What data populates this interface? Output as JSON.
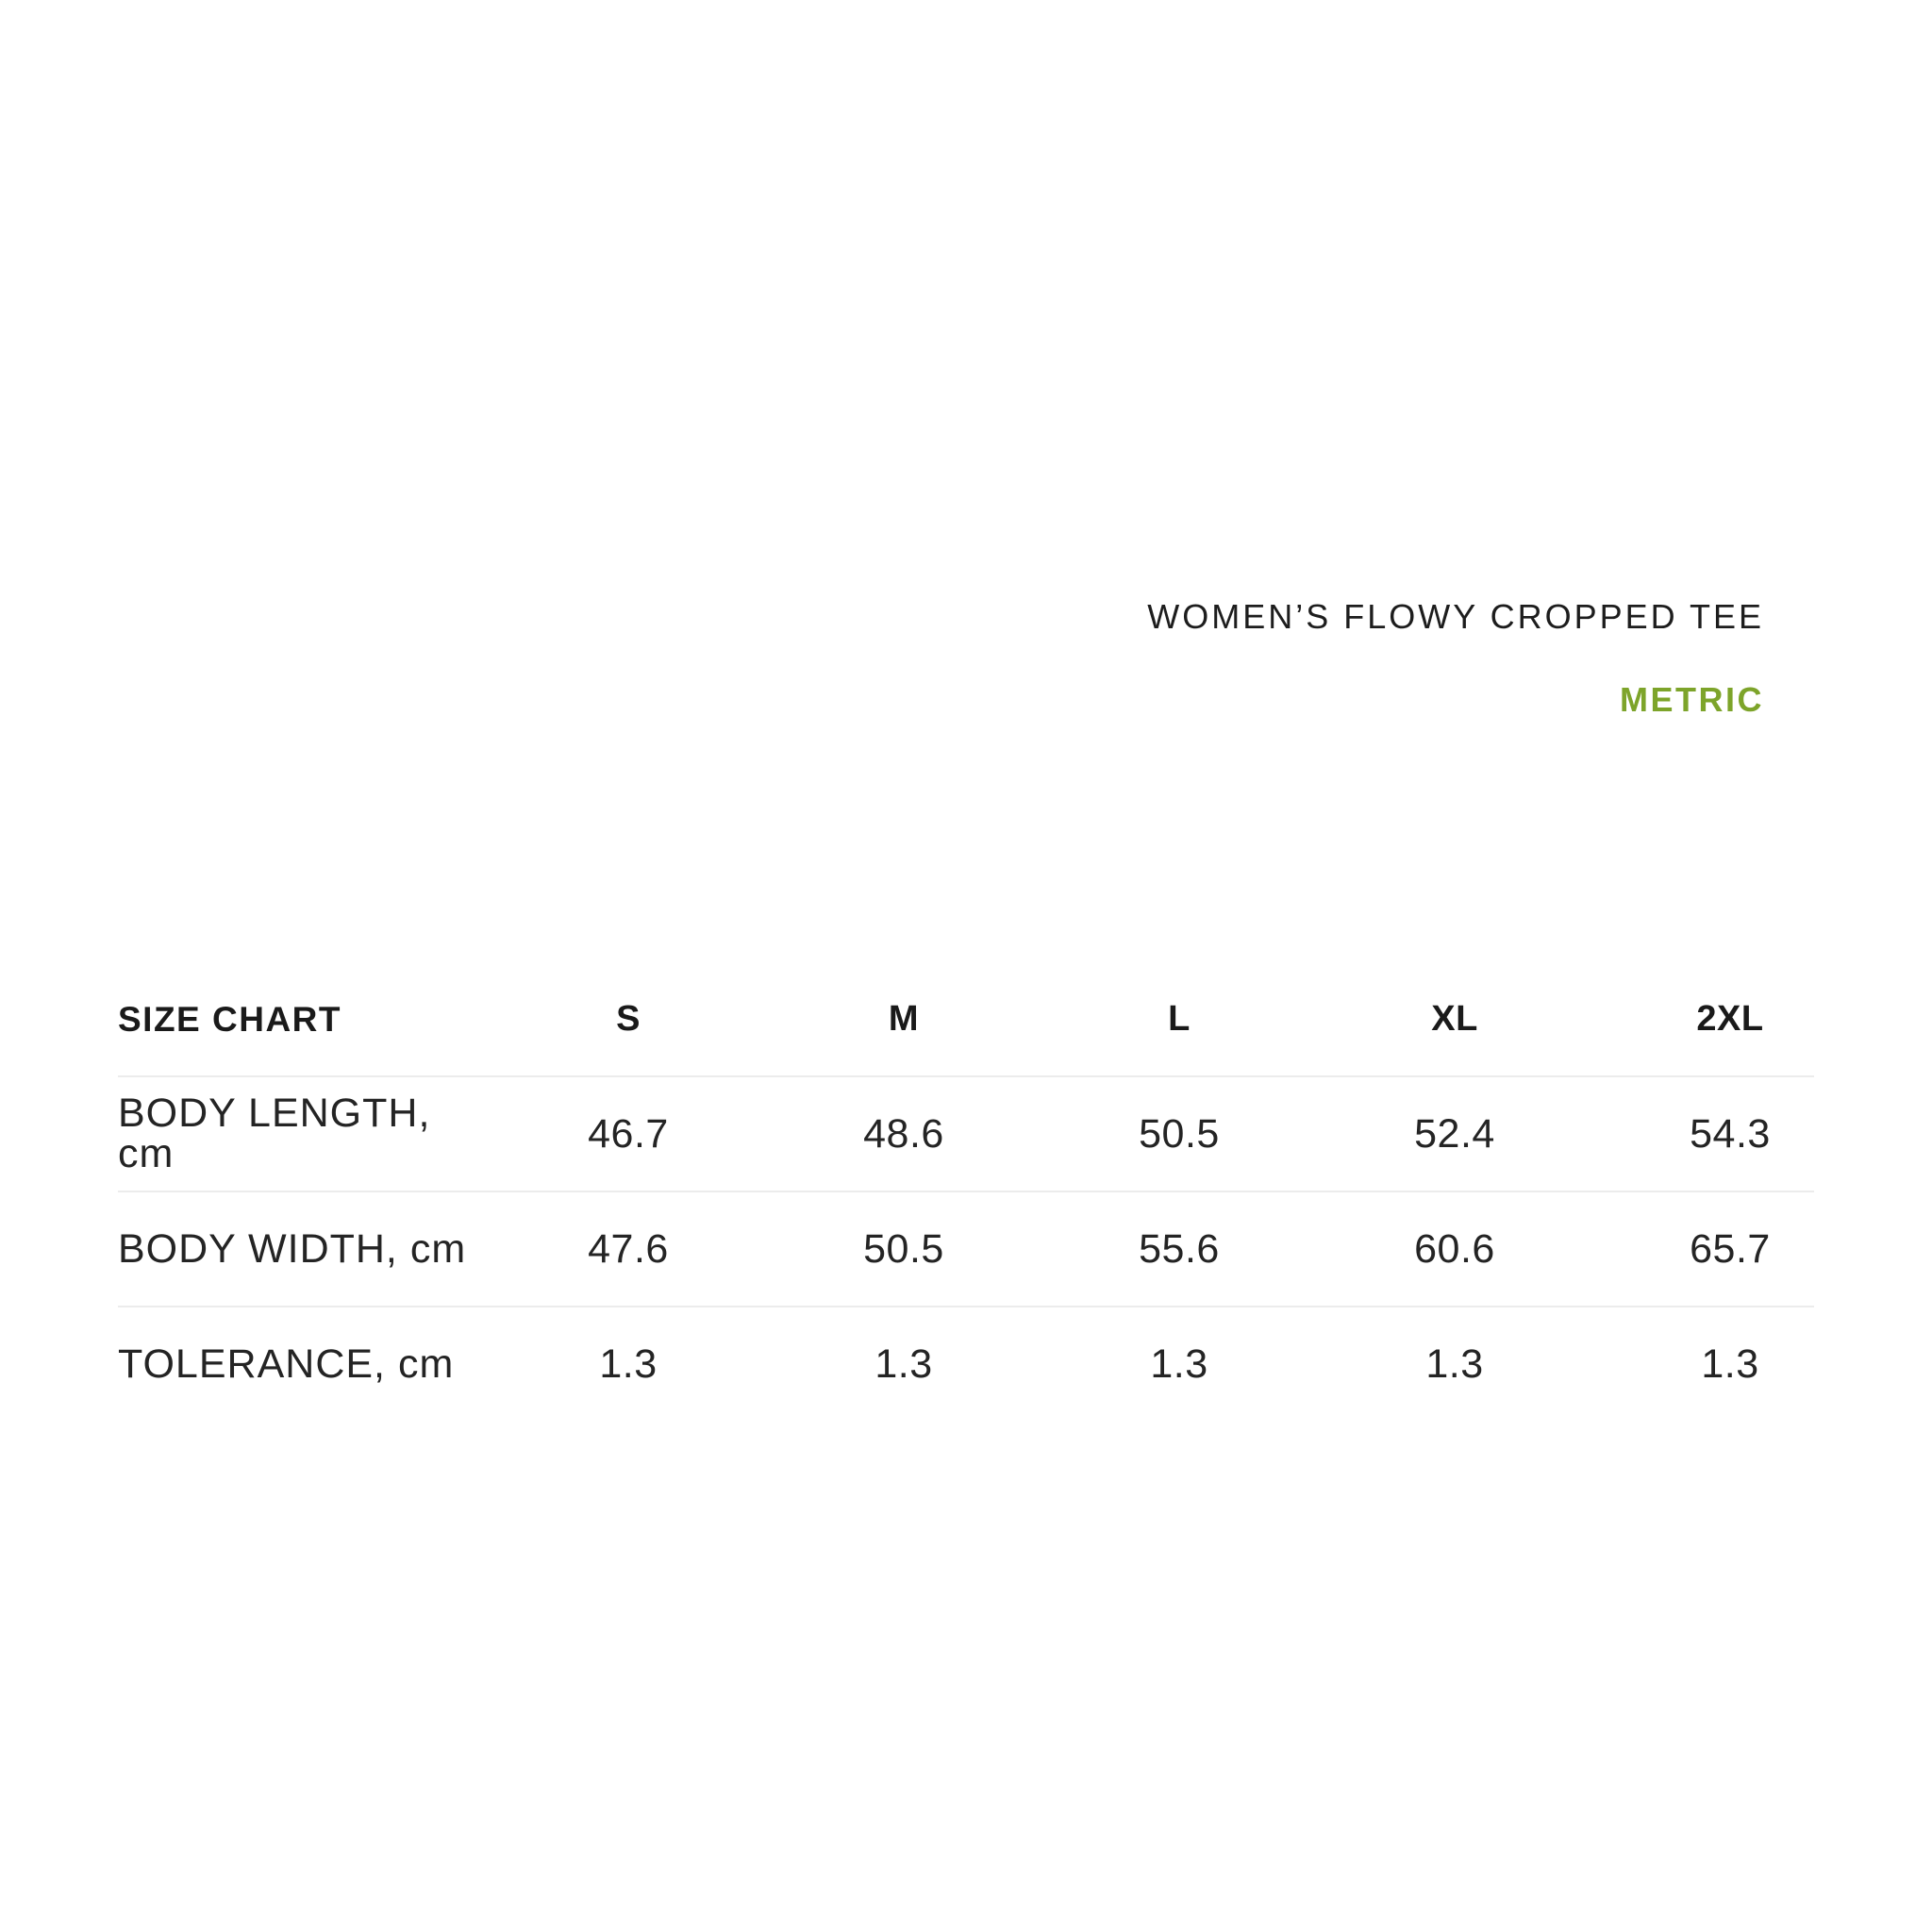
{
  "header": {
    "product_title": "WOMEN’S FLOWY CROPPED TEE",
    "unit_toggle_label": "METRIC"
  },
  "size_chart": {
    "title": "SIZE CHART",
    "columns": [
      "S",
      "M",
      "L",
      "XL",
      "2XL"
    ],
    "rows": [
      {
        "label": "BODY LENGTH, cm",
        "values": [
          "46.7",
          "48.6",
          "50.5",
          "52.4",
          "54.3"
        ]
      },
      {
        "label": "BODY WIDTH, cm",
        "values": [
          "47.6",
          "50.5",
          "55.6",
          "60.6",
          "65.7"
        ]
      },
      {
        "label": "TOLERANCE, cm",
        "values": [
          "1.3",
          "1.3",
          "1.3",
          "1.3",
          "1.3"
        ]
      }
    ]
  },
  "colors": {
    "accent_green": "#7da42a",
    "text_dark": "#1d1d1d",
    "divider_gray": "#ececec",
    "background": "#ffffff"
  }
}
